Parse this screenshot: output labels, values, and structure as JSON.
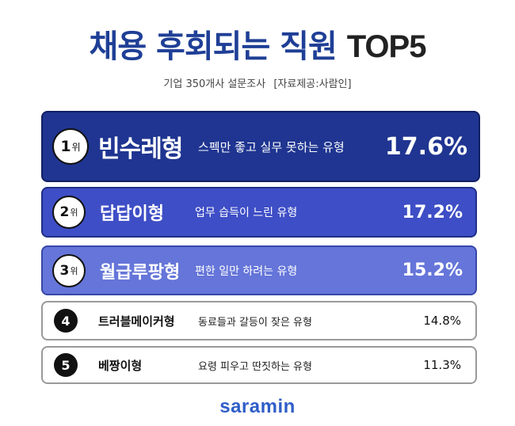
{
  "title": {
    "korean": "채용 후회되는 직원",
    "english": "TOP5"
  },
  "subtitle": {
    "survey": "기업 350개사 설문조사",
    "source": "[자료제공:사람인]"
  },
  "rank_suffix": "위",
  "ranks": [
    {
      "number": "1",
      "name": "빈수레형",
      "description": "스펙만 좋고 실무 못하는 유형",
      "percent": "17.6%"
    },
    {
      "number": "2",
      "name": "답답이형",
      "description": "업무 습득이 느린 유형",
      "percent": "17.2%"
    },
    {
      "number": "3",
      "name": "월급루팡형",
      "description": "편한 일만 하려는 유형",
      "percent": "15.2%"
    },
    {
      "number": "4",
      "name": "트러블메이커형",
      "description": "동료들과 갈등이 잦은 유형",
      "percent": "14.8%"
    },
    {
      "number": "5",
      "name": "베짱이형",
      "description": "요령 피우고 딴짓하는 유형",
      "percent": "11.3%"
    }
  ],
  "logo": "saramin",
  "colors": {
    "title_blue": "#1f3f96",
    "rank1_bg": "#1f3591",
    "rank2_bg": "#3e4ec6",
    "rank3_bg": "#6575d9",
    "logo_blue": "#2f5ec8"
  }
}
